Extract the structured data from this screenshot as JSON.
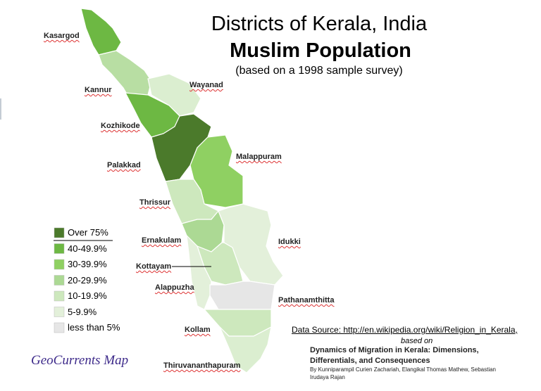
{
  "title": {
    "line1": "Districts of Kerala, India",
    "line2": "Muslim Population",
    "line3": "(based on a 1998 sample survey)"
  },
  "legend": [
    {
      "label": "Over 75%",
      "color": "#4b7a2b"
    },
    {
      "label": "40-49.9%",
      "color": "#6db843"
    },
    {
      "label": "30-39.9%",
      "color": "#8fd062"
    },
    {
      "label": "20-29.9%",
      "color": "#acd994"
    },
    {
      "label": "10-19.9%",
      "color": "#cde8bd"
    },
    {
      "label": "5-9.9%",
      "color": "#e3f0da"
    },
    {
      "label": "less than 5%",
      "color": "#e6e6e6"
    }
  ],
  "districts": [
    {
      "label": "Kasargod",
      "color": "#6db843"
    },
    {
      "label": "Kannur",
      "color": "#b8deA3"
    },
    {
      "label": "Wayanad",
      "color": "#dbeed0"
    },
    {
      "label": "Kozhikode",
      "color": "#6db843"
    },
    {
      "label": "Malappuram",
      "color": "#4b7a2b"
    },
    {
      "label": "Palakkad",
      "color": "#8fd062"
    },
    {
      "label": "Thrissur",
      "color": "#cde8bd"
    },
    {
      "label": "Ernakulam",
      "color": "#acd994"
    },
    {
      "label": "Idukki",
      "color": "#e3f0da"
    },
    {
      "label": "Kottayam",
      "color": "#cde8bd"
    },
    {
      "label": "Alappuzha",
      "color": "#e3f0da"
    },
    {
      "label": "Pathanamthitta",
      "color": "#e6e6e6"
    },
    {
      "label": "Kollam",
      "color": "#cde8bd"
    },
    {
      "label": "Thiruvananthapuram",
      "color": "#dbeed0"
    }
  ],
  "source": {
    "text": "Data Source: http://en.wikipedia.org/wiki/Religion_in_Kerala,",
    "based_on": "based on",
    "book": [
      "Dynamics of Migration in Kerala: Dimensions,",
      "Differentials, and Consequences"
    ],
    "authors": [
      "By Kunniparampil Curien Zachariah, Elangikal Thomas Mathew, Sebastian",
      "Irudaya Rajan"
    ]
  },
  "credit": "GeoCurrents Map"
}
